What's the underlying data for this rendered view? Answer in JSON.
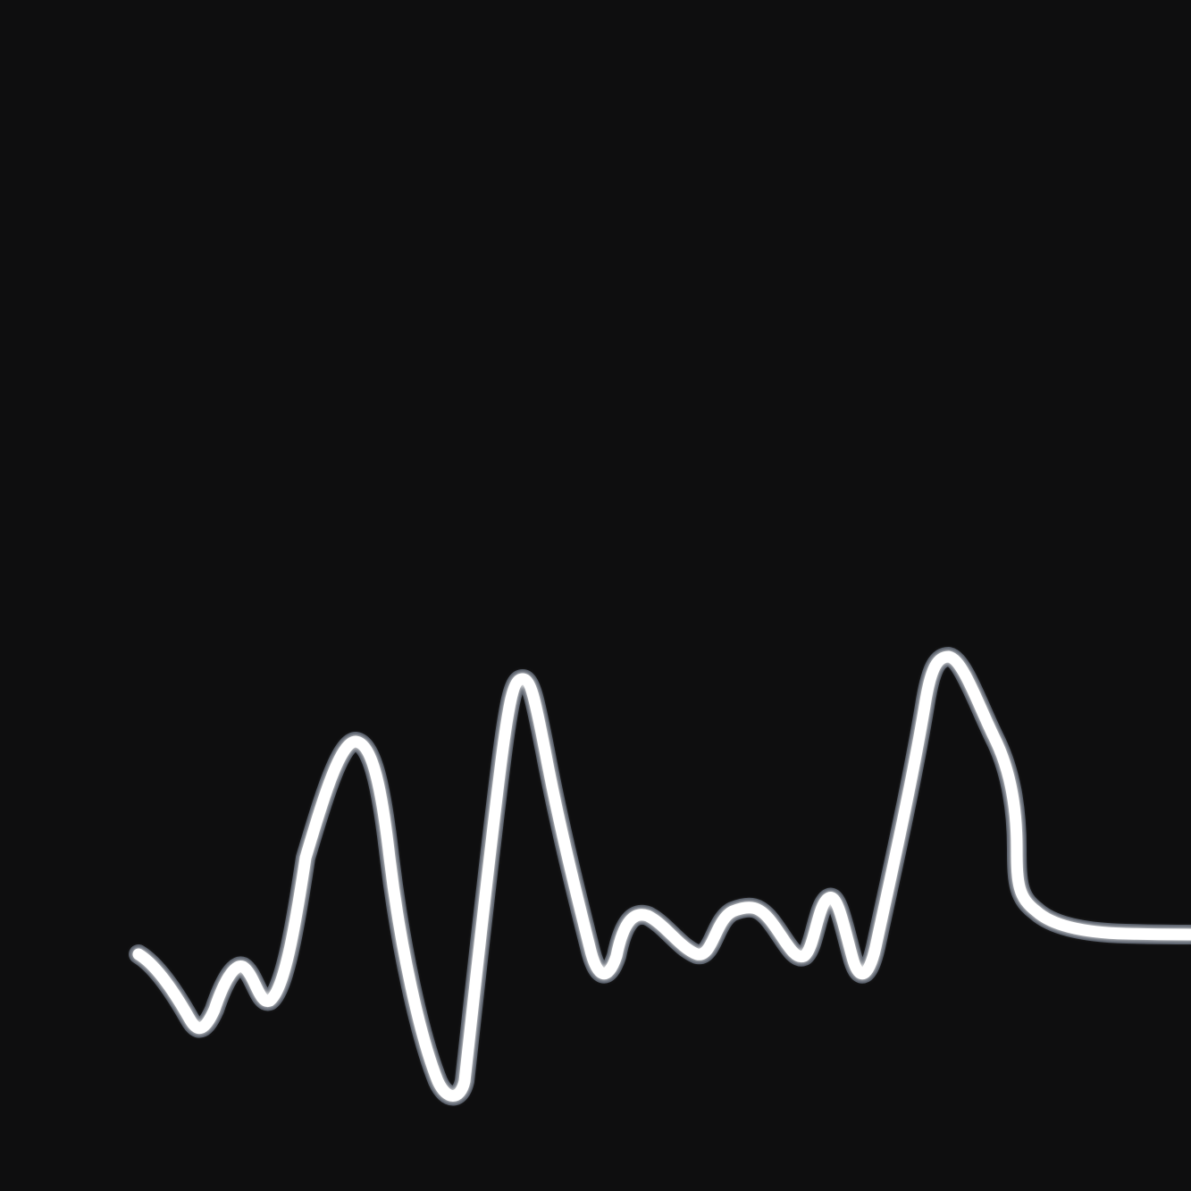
{
  "scene": {
    "subject": "light-trail",
    "background_color": "#0e0e0f",
    "trail_color": "#ffffff",
    "trail_tint": "#c9dcff"
  }
}
